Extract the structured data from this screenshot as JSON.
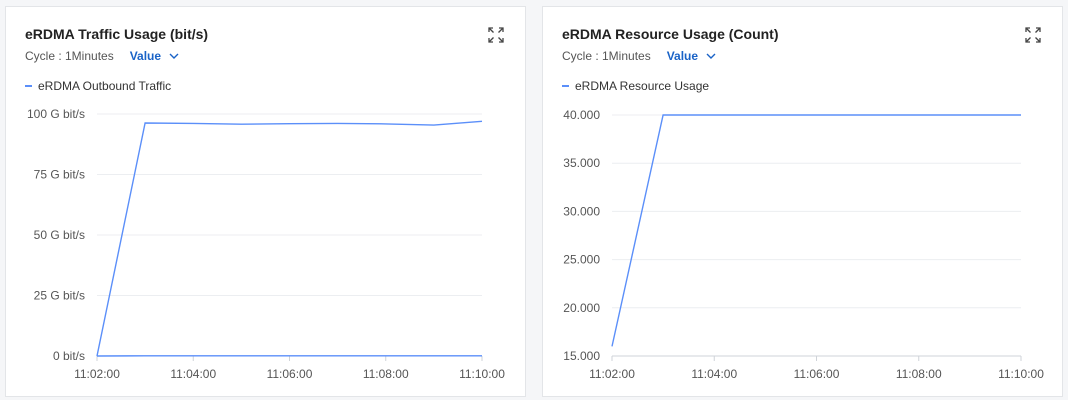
{
  "charts": [
    {
      "title": "eRDMA Traffic Usage (bit/s)",
      "cycle_label": "Cycle : 1Minutes",
      "value_label": "Value",
      "expand_icon": "expand-icon",
      "legend": [
        "eRDMA Outbound Traffic"
      ]
    },
    {
      "title": "eRDMA Resource Usage (Count)",
      "cycle_label": "Cycle : 1Minutes",
      "value_label": "Value",
      "expand_icon": "expand-icon",
      "legend": [
        "eRDMA Resource Usage"
      ]
    }
  ],
  "chart_data": [
    {
      "type": "line",
      "title": "eRDMA Traffic Usage (bit/s)",
      "x": [
        "11:02:00",
        "11:03:00",
        "11:04:00",
        "11:05:00",
        "11:06:00",
        "11:07:00",
        "11:08:00",
        "11:09:00",
        "11:10:00"
      ],
      "x_tick_labels": [
        "11:02:00",
        "11:04:00",
        "11:06:00",
        "11:08:00",
        "11:10:00"
      ],
      "y_tick_values": [
        0,
        25,
        50,
        75,
        100
      ],
      "y_tick_labels": [
        "0  bit/s",
        "25 G bit/s",
        "50 G bit/s",
        "75 G bit/s",
        "100 G bit/s"
      ],
      "ylim": [
        0,
        100
      ],
      "grid": true,
      "legend_position": "top-left",
      "line_color": "#5b8ff9",
      "series": [
        {
          "name": "eRDMA Outbound Traffic",
          "values": [
            0,
            96.3,
            96.1,
            95.8,
            96.0,
            96.1,
            95.9,
            95.4,
            97.0
          ]
        },
        {
          "name": "",
          "values": [
            0,
            0.1,
            0.1,
            0.1,
            0.1,
            0.1,
            0.1,
            0.1,
            0.1
          ]
        }
      ]
    },
    {
      "type": "line",
      "title": "eRDMA Resource Usage (Count)",
      "x": [
        "11:02:00",
        "11:03:00",
        "11:04:00",
        "11:05:00",
        "11:06:00",
        "11:07:00",
        "11:08:00",
        "11:09:00",
        "11:10:00"
      ],
      "x_tick_labels": [
        "11:02:00",
        "11:04:00",
        "11:06:00",
        "11:08:00",
        "11:10:00"
      ],
      "y_tick_values": [
        15,
        20,
        25,
        30,
        35,
        40
      ],
      "y_tick_labels": [
        "15.000",
        "20.000",
        "25.000",
        "30.000",
        "35.000",
        "40.000"
      ],
      "ylim": [
        15,
        40
      ],
      "grid": true,
      "legend_position": "top-left",
      "line_color": "#5b8ff9",
      "series": [
        {
          "name": "eRDMA Resource Usage",
          "values": [
            16,
            40,
            40,
            40,
            40,
            40,
            40,
            40,
            40
          ]
        }
      ]
    }
  ]
}
